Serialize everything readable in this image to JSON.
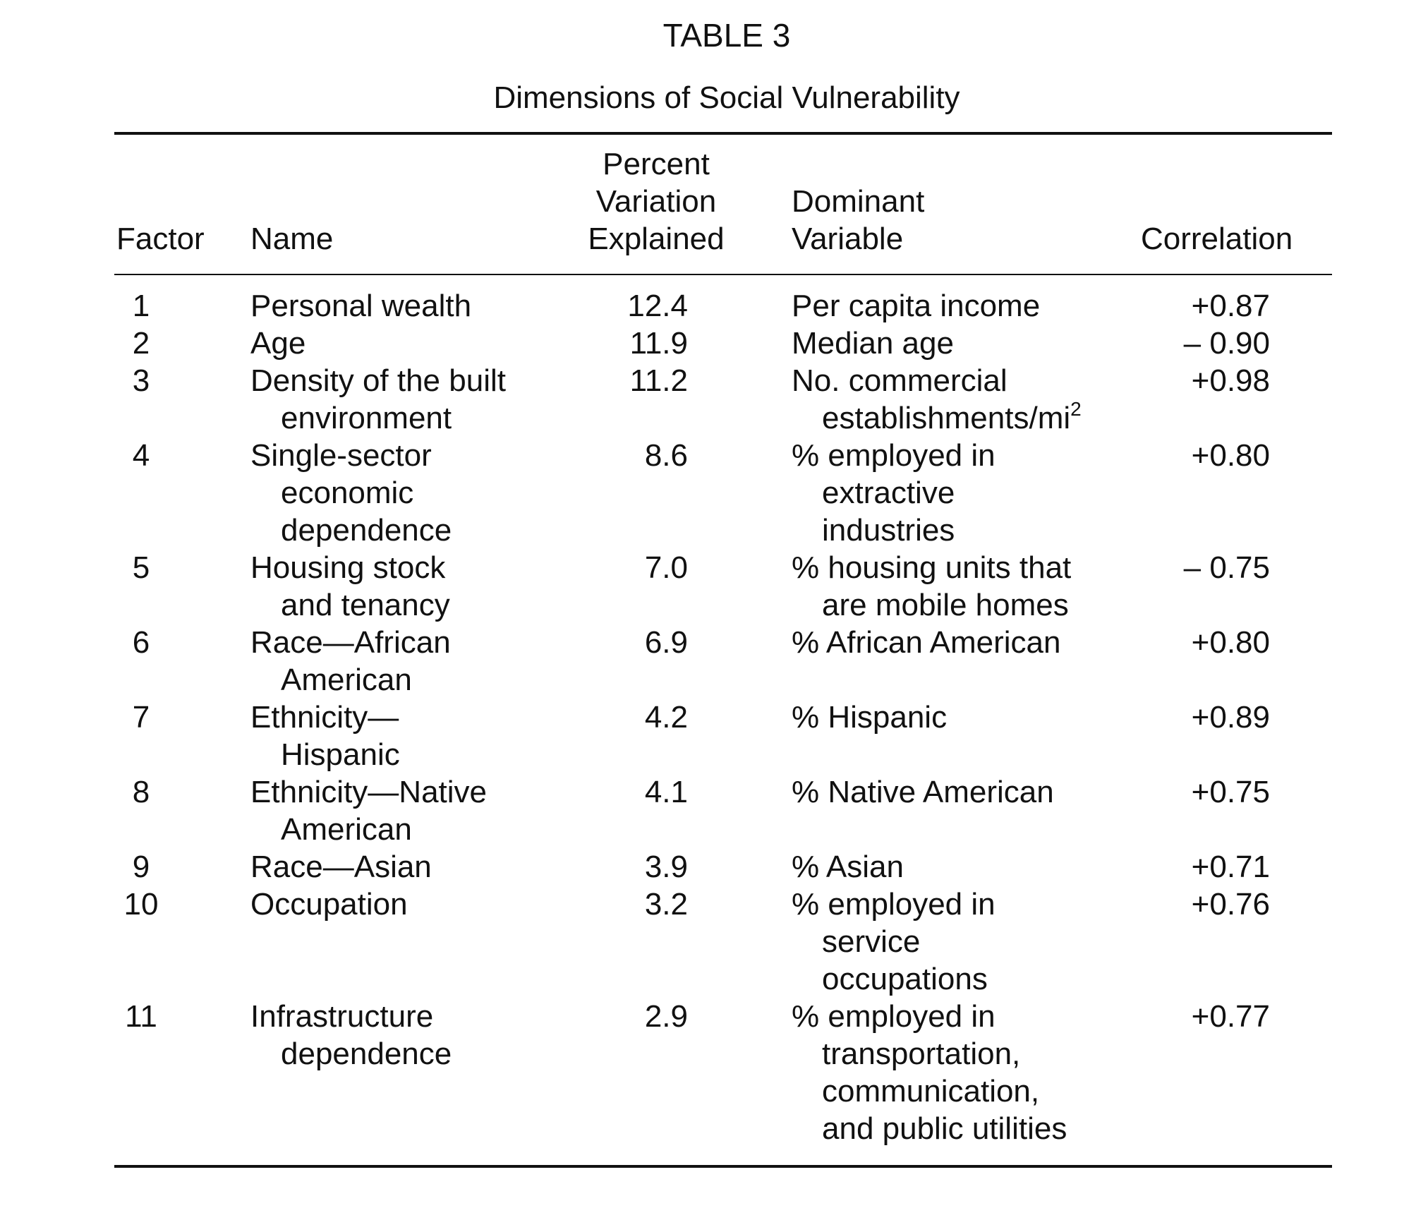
{
  "table": {
    "label": "TABLE 3",
    "caption": "Dimensions of Social Vulnerability",
    "headers": {
      "factor": "Factor",
      "name": "Name",
      "percent_lines": [
        "Percent",
        "Variation",
        "Explained"
      ],
      "dominant_lines": [
        "Dominant",
        "Variable"
      ],
      "correlation": "Correlation"
    },
    "rows": [
      {
        "factor": "1",
        "name": [
          "Personal wealth"
        ],
        "percent": "12.4",
        "dominant": [
          "Per capita income"
        ],
        "correlation": "+0.87"
      },
      {
        "factor": "2",
        "name": [
          "Age"
        ],
        "percent": "11.9",
        "dominant": [
          "Median age"
        ],
        "correlation": "– 0.90"
      },
      {
        "factor": "3",
        "name": [
          "Density of the built",
          "environment"
        ],
        "percent": "11.2",
        "dominant": [
          "No. commercial",
          "establishments/mi"
        ],
        "dominant_sup": "2",
        "correlation": "+0.98"
      },
      {
        "factor": "4",
        "name": [
          "Single-sector",
          "economic",
          "dependence"
        ],
        "percent": "8.6",
        "dominant": [
          "% employed in",
          "extractive",
          "industries"
        ],
        "correlation": "+0.80"
      },
      {
        "factor": "5",
        "name": [
          "Housing stock",
          "and tenancy"
        ],
        "percent": "7.0",
        "dominant": [
          "% housing units that",
          "are mobile homes"
        ],
        "correlation": "– 0.75"
      },
      {
        "factor": "6",
        "name": [
          "Race—African",
          "American"
        ],
        "percent": "6.9",
        "dominant": [
          "% African American"
        ],
        "correlation": "+0.80"
      },
      {
        "factor": "7",
        "name": [
          "Ethnicity—",
          "Hispanic"
        ],
        "percent": "4.2",
        "dominant": [
          "% Hispanic"
        ],
        "correlation": "+0.89"
      },
      {
        "factor": "8",
        "name": [
          "Ethnicity—Native",
          "American"
        ],
        "percent": "4.1",
        "dominant": [
          "% Native American"
        ],
        "correlation": "+0.75"
      },
      {
        "factor": "9",
        "name": [
          "Race—Asian"
        ],
        "percent": "3.9",
        "dominant": [
          "% Asian"
        ],
        "correlation": "+0.71"
      },
      {
        "factor": "10",
        "name": [
          "Occupation"
        ],
        "percent": "3.2",
        "dominant": [
          "% employed in",
          "service",
          "occupations"
        ],
        "correlation": "+0.76"
      },
      {
        "factor": "11",
        "name": [
          "Infrastructure",
          "dependence"
        ],
        "percent": "2.9",
        "dominant": [
          "% employed in",
          "transportation,",
          "communication,",
          "and public utilities"
        ],
        "correlation": "+0.77"
      }
    ]
  }
}
